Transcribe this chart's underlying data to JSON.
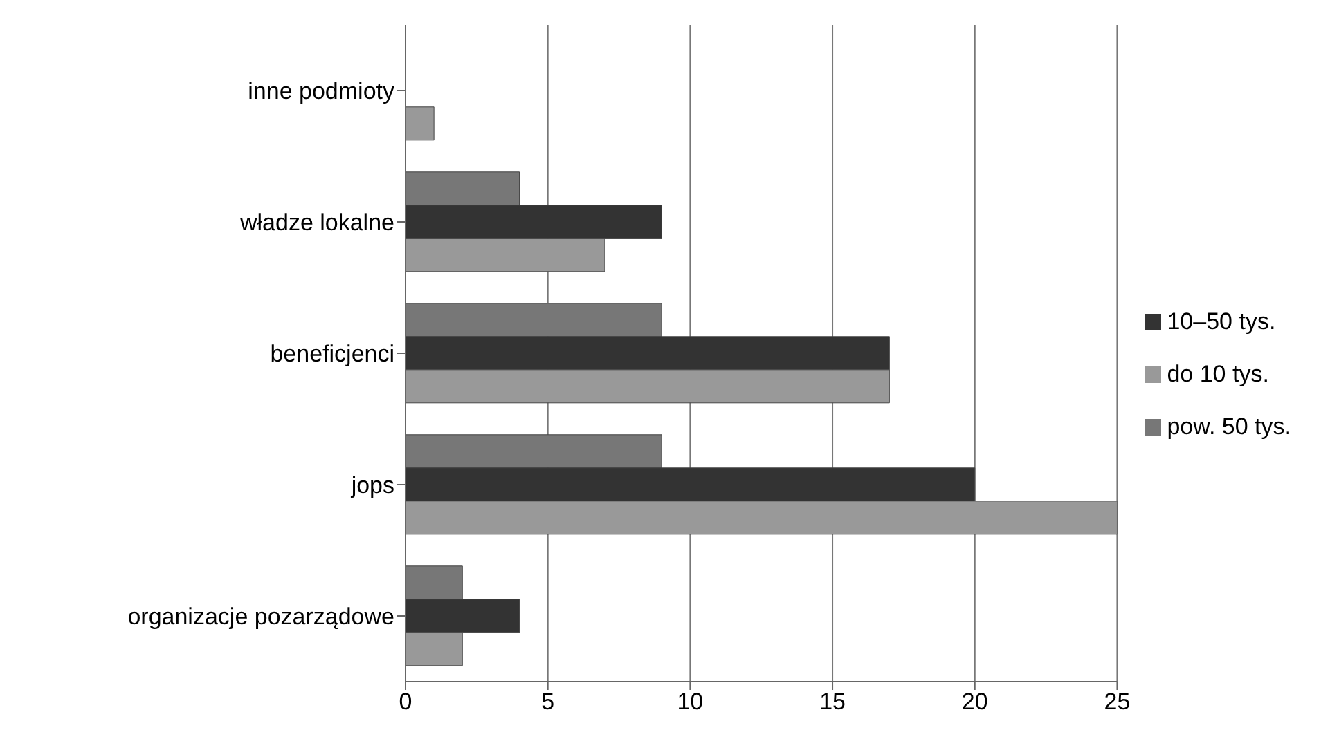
{
  "chart_data": {
    "type": "bar",
    "orientation": "horizontal",
    "categories": [
      "inne podmioty",
      "władze lokalne",
      "beneficjenci",
      "jops",
      "organizacje pozarządowe"
    ],
    "series": [
      {
        "name": "pow. 50 tys.",
        "color": "#777777",
        "values": [
          null,
          4,
          9,
          9,
          2
        ]
      },
      {
        "name": "10–50 tys.",
        "color": "#333333",
        "values": [
          null,
          9,
          17,
          20,
          4
        ]
      },
      {
        "name": "do 10 tys.",
        "color": "#999999",
        "values": [
          1,
          7,
          17,
          25,
          2
        ]
      }
    ],
    "xlim": [
      0,
      25
    ],
    "xticks": [
      0,
      5,
      10,
      15,
      20,
      25
    ],
    "grid": "x",
    "legend": "right"
  }
}
